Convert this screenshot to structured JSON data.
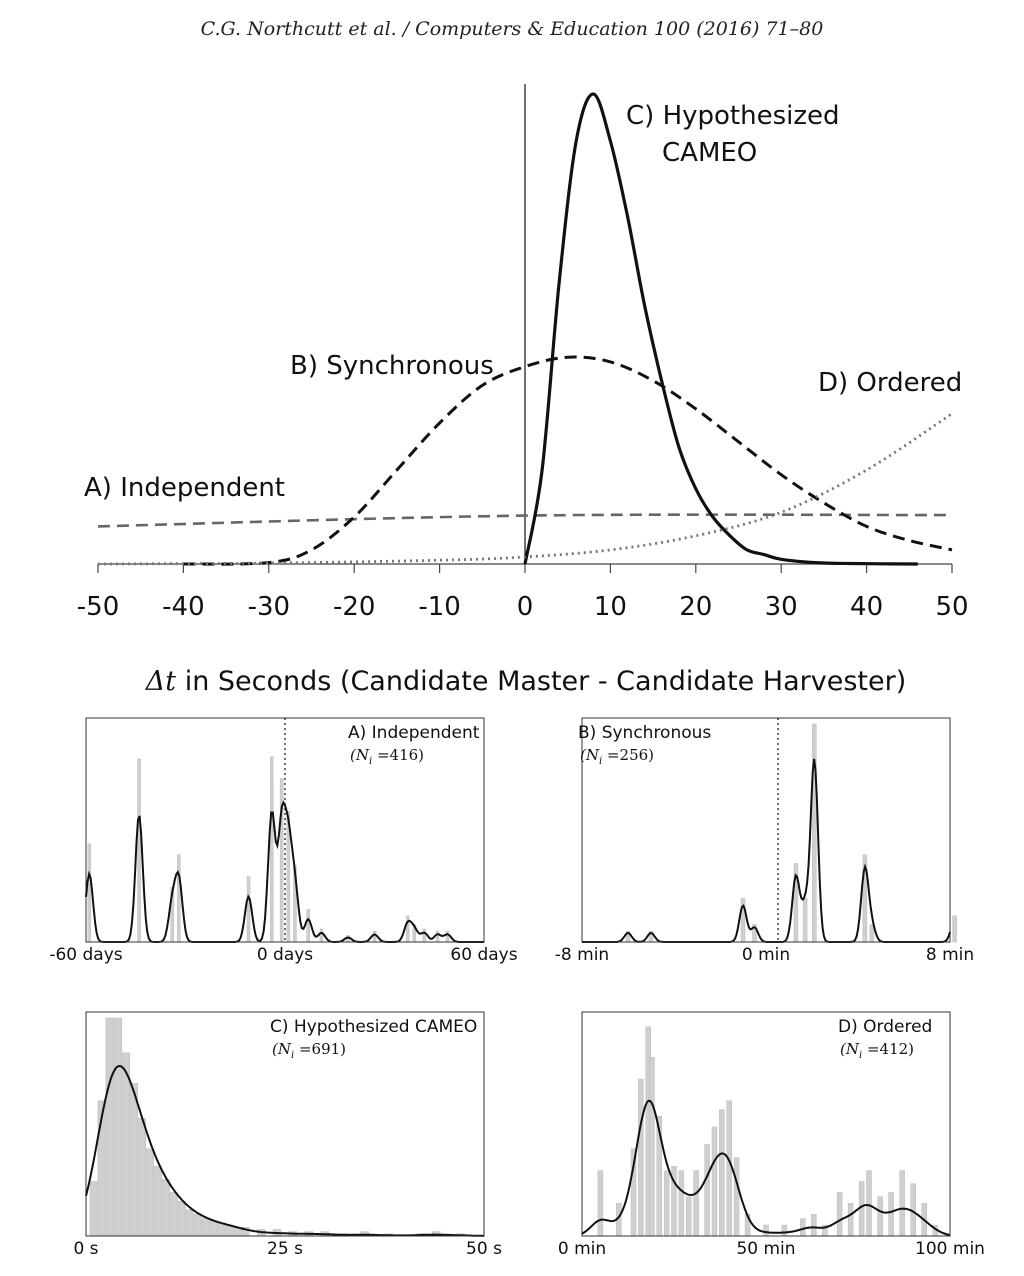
{
  "header": "C.G. Northcutt et al. / Computers & Education 100 (2016) 71–80",
  "chart_data": [
    {
      "type": "line",
      "xlabel_symbol": "Δt",
      "xlabel_text": " in Seconds (Candidate Master - Candidate Harvester)",
      "xlim": [
        -50,
        50
      ],
      "xticks": [
        "-50",
        "-40",
        "-30",
        "-20",
        "-10",
        "0",
        "10",
        "20",
        "30",
        "40",
        "50"
      ],
      "grid": false,
      "series": [
        {
          "name": "A) Independent",
          "style": "dashed-gray",
          "x": [
            -50,
            0,
            50
          ],
          "y": [
            0.08,
            0.103,
            0.104
          ]
        },
        {
          "name": "B) Synchronous",
          "style": "dashed-black",
          "x": [
            -40,
            -30,
            -25,
            -20,
            -15,
            -10,
            -5,
            0,
            5,
            10,
            15,
            20,
            25,
            30,
            35,
            40,
            45,
            50
          ],
          "y": [
            0,
            0.003,
            0.03,
            0.1,
            0.2,
            0.3,
            0.38,
            0.42,
            0.44,
            0.43,
            0.39,
            0.33,
            0.26,
            0.19,
            0.13,
            0.08,
            0.05,
            0.03
          ]
        },
        {
          "name": "C) Hypothesized CAMEO",
          "style": "solid-black",
          "x": [
            0,
            2,
            4,
            6,
            8,
            10,
            12,
            14,
            16,
            18,
            20,
            22,
            24,
            26,
            28,
            30,
            34,
            38,
            46
          ],
          "y": [
            0,
            0.2,
            0.6,
            0.9,
            1.0,
            0.9,
            0.74,
            0.55,
            0.39,
            0.25,
            0.16,
            0.1,
            0.06,
            0.03,
            0.02,
            0.01,
            0.003,
            0.001,
            0
          ]
        },
        {
          "name": "D) Ordered",
          "style": "dotted-gray",
          "x": [
            -50,
            -30,
            -10,
            0,
            10,
            20,
            30,
            40,
            50
          ],
          "y": [
            0,
            0.002,
            0.008,
            0.015,
            0.03,
            0.06,
            0.11,
            0.2,
            0.32
          ]
        }
      ]
    },
    {
      "type": "bar",
      "title": "A) Independent",
      "n_label_i": "i",
      "n_label_value": "=416",
      "xtick_labels": [
        "-60 days",
        "0 days",
        "60 days"
      ],
      "xlim": [
        -60,
        60
      ],
      "x": [
        -59,
        -44,
        -34,
        -32,
        -11,
        -4,
        -1,
        1,
        3,
        7,
        11,
        19,
        27,
        37,
        39,
        42,
        46,
        49
      ],
      "values": [
        0.45,
        0.84,
        0.25,
        0.4,
        0.3,
        0.85,
        0.75,
        0.6,
        0.35,
        0.15,
        0.06,
        0.03,
        0.05,
        0.12,
        0.08,
        0.06,
        0.05,
        0.05
      ]
    },
    {
      "type": "bar",
      "title": "B) Synchronous",
      "n_label_i": "i",
      "n_label_value": "=256",
      "xtick_labels": [
        "-8 min",
        "0 min",
        "8 min"
      ],
      "xlim": [
        -8,
        8
      ],
      "x": [
        -6,
        -5,
        -1,
        -0.5,
        1.3,
        1.7,
        2.1,
        4.3,
        4.6,
        8.2
      ],
      "values": [
        0.05,
        0.05,
        0.2,
        0.08,
        0.36,
        0.2,
        1.0,
        0.4,
        0.08,
        0.12
      ]
    },
    {
      "type": "bar",
      "title": "C) Hypothesized CAMEO",
      "n_label_i": "i",
      "n_label_value": "=691",
      "xtick_labels": [
        "0 s",
        "25 s",
        "50 s"
      ],
      "xlim": [
        0,
        50
      ],
      "x": [
        1,
        2,
        3,
        4,
        5,
        6,
        7,
        8,
        9,
        10,
        11,
        12,
        13,
        14,
        15,
        16,
        17,
        18,
        19,
        20,
        22,
        24,
        26,
        28,
        30,
        32,
        35,
        38,
        42,
        44,
        47
      ],
      "values": [
        0.25,
        0.62,
        1.0,
        1.0,
        0.84,
        0.7,
        0.54,
        0.4,
        0.32,
        0.26,
        0.2,
        0.16,
        0.12,
        0.1,
        0.08,
        0.07,
        0.06,
        0.05,
        0.04,
        0.04,
        0.03,
        0.03,
        0.02,
        0.02,
        0.02,
        0.01,
        0.02,
        0.01,
        0.01,
        0.02,
        0.01
      ]
    },
    {
      "type": "bar",
      "title": "D) Ordered",
      "n_label_i": "i",
      "n_label_value": "=412",
      "xtick_labels": [
        "0 min",
        "50 min",
        "100 min"
      ],
      "xlim": [
        0,
        100
      ],
      "x": [
        5,
        10,
        14,
        16,
        18,
        19,
        21,
        23,
        25,
        27,
        29,
        31,
        34,
        36,
        38,
        40,
        42,
        45,
        50,
        55,
        60,
        63,
        66,
        70,
        73,
        76,
        78,
        81,
        84,
        87,
        90,
        93,
        96
      ],
      "values": [
        0.3,
        0.15,
        0.4,
        0.72,
        0.96,
        0.82,
        0.55,
        0.3,
        0.32,
        0.3,
        0.18,
        0.3,
        0.42,
        0.5,
        0.58,
        0.62,
        0.36,
        0.1,
        0.05,
        0.05,
        0.08,
        0.1,
        0.05,
        0.2,
        0.15,
        0.25,
        0.3,
        0.18,
        0.2,
        0.3,
        0.24,
        0.15,
        0.05
      ]
    }
  ]
}
